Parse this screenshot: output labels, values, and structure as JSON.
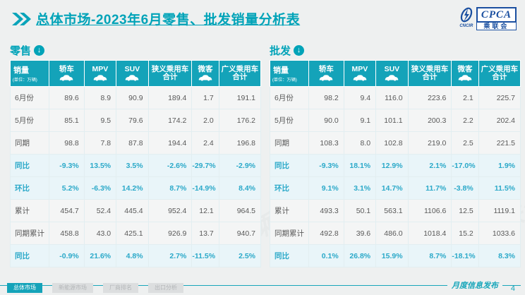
{
  "page": {
    "title": "总体市场-2023年6月零售、批发销量分析表",
    "watermark": "CPCA乘联会",
    "logo": {
      "cncir": "CNCIR",
      "cpca": "CPCA",
      "association": "乘联会"
    }
  },
  "colors": {
    "teal_accent": "#14a3b9",
    "title_teal": "#00a3b8",
    "highlight_text": "#2ba9c9",
    "highlight_row_bg": "#e9f5f9",
    "logo_blue": "#1a4fa0"
  },
  "tables": [
    {
      "section": "零售",
      "unit_label": "销量",
      "unit_note": "(单位：万辆)",
      "columns": [
        {
          "label": "轿车",
          "icon": "sedan-icon"
        },
        {
          "label": "MPV",
          "icon": "mpv-icon"
        },
        {
          "label": "SUV",
          "icon": "suv-icon"
        },
        {
          "label": "狭义乘用车",
          "label2": "合计"
        },
        {
          "label": "微客",
          "icon": "van-icon"
        },
        {
          "label": "广义乘用车",
          "label2": "合计"
        }
      ],
      "rows": [
        {
          "label": "6月份",
          "highlight": false,
          "values": [
            "89.6",
            "8.9",
            "90.9",
            "189.4",
            "1.7",
            "191.1"
          ]
        },
        {
          "label": "5月份",
          "highlight": false,
          "values": [
            "85.1",
            "9.5",
            "79.6",
            "174.2",
            "2.0",
            "176.2"
          ]
        },
        {
          "label": "同期",
          "highlight": false,
          "values": [
            "98.8",
            "7.8",
            "87.8",
            "194.4",
            "2.4",
            "196.8"
          ]
        },
        {
          "label": "同比",
          "highlight": true,
          "values": [
            "-9.3%",
            "13.5%",
            "3.5%",
            "-2.6%",
            "-29.7%",
            "-2.9%"
          ]
        },
        {
          "label": "环比",
          "highlight": true,
          "values": [
            "5.2%",
            "-6.3%",
            "14.2%",
            "8.7%",
            "-14.9%",
            "8.4%"
          ]
        },
        {
          "label": "累计",
          "highlight": false,
          "values": [
            "454.7",
            "52.4",
            "445.4",
            "952.4",
            "12.1",
            "964.5"
          ]
        },
        {
          "label": "同期累计",
          "highlight": false,
          "values": [
            "458.8",
            "43.0",
            "425.1",
            "926.9",
            "13.7",
            "940.7"
          ]
        },
        {
          "label": "同比",
          "highlight": true,
          "values": [
            "-0.9%",
            "21.6%",
            "4.8%",
            "2.7%",
            "-11.5%",
            "2.5%"
          ]
        }
      ]
    },
    {
      "section": "批发",
      "unit_label": "销量",
      "unit_note": "(单位：万辆)",
      "columns": [
        {
          "label": "轿车",
          "icon": "sedan-icon"
        },
        {
          "label": "MPV",
          "icon": "mpv-icon"
        },
        {
          "label": "SUV",
          "icon": "suv-icon"
        },
        {
          "label": "狭义乘用车",
          "label2": "合计"
        },
        {
          "label": "微客",
          "icon": "van-icon"
        },
        {
          "label": "广义乘用车",
          "label2": "合计"
        }
      ],
      "rows": [
        {
          "label": "6月份",
          "highlight": false,
          "values": [
            "98.2",
            "9.4",
            "116.0",
            "223.6",
            "2.1",
            "225.7"
          ]
        },
        {
          "label": "5月份",
          "highlight": false,
          "values": [
            "90.0",
            "9.1",
            "101.1",
            "200.3",
            "2.2",
            "202.4"
          ]
        },
        {
          "label": "同期",
          "highlight": false,
          "values": [
            "108.3",
            "8.0",
            "102.8",
            "219.0",
            "2.5",
            "221.5"
          ]
        },
        {
          "label": "同比",
          "highlight": true,
          "values": [
            "-9.3%",
            "18.1%",
            "12.9%",
            "2.1%",
            "-17.0%",
            "1.9%"
          ]
        },
        {
          "label": "环比",
          "highlight": true,
          "values": [
            "9.1%",
            "3.1%",
            "14.7%",
            "11.7%",
            "-3.8%",
            "11.5%"
          ]
        },
        {
          "label": "累计",
          "highlight": false,
          "values": [
            "493.3",
            "50.1",
            "563.1",
            "1106.6",
            "12.5",
            "1119.1"
          ]
        },
        {
          "label": "同期累计",
          "highlight": false,
          "values": [
            "492.8",
            "39.6",
            "486.0",
            "1018.4",
            "15.2",
            "1033.6"
          ]
        },
        {
          "label": "同比",
          "highlight": true,
          "values": [
            "0.1%",
            "26.8%",
            "15.9%",
            "8.7%",
            "-18.1%",
            "8.3%"
          ]
        }
      ]
    }
  ],
  "footer": {
    "tabs": [
      {
        "label": "总体市场",
        "active": true
      },
      {
        "label": "新能源市场",
        "active": false
      },
      {
        "label": "厂商排名",
        "active": false
      },
      {
        "label": "出口分析",
        "active": false
      }
    ],
    "publish_label": "月度信息发布",
    "page_number": "4"
  }
}
